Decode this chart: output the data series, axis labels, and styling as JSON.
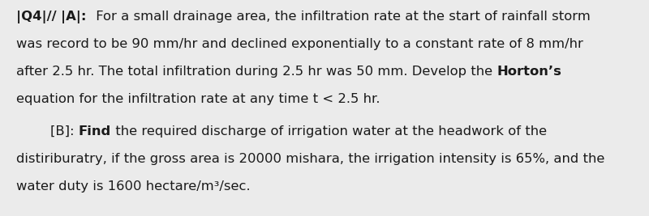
{
  "background_color": "#ebebeb",
  "text_color": "#1a1a1a",
  "font_size": 11.8,
  "line1_parts": [
    {
      "text": "|Q4|// ",
      "bold": true
    },
    {
      "text": "|A|: ",
      "bold": true
    },
    {
      "text": " For a small drainage area, the infiltration rate at the start of rainfall storm",
      "bold": false
    }
  ],
  "line2": "was record to be 90 mm/hr and declined exponentially to a constant rate of 8 mm/hr",
  "line3_parts": [
    {
      "text": "after 2.5 hr. The total infiltration during 2.5 hr was 50 mm. Develop the ",
      "bold": false
    },
    {
      "text": "Horton’s",
      "bold": true
    }
  ],
  "line4": "equation for the infiltration rate at any time t < 2.5 hr.",
  "line5_parts": [
    {
      "text": "        [B]: ",
      "bold": false
    },
    {
      "text": "Find",
      "bold": true
    },
    {
      "text": " the required discharge of irrigation water at the headwork of the",
      "bold": false
    }
  ],
  "line6": "distiriburatry, if the gross area is 20000 mishara, the irrigation intensity is 65%, and the",
  "line7": "water duty is 1600 hectare/m³/sec."
}
